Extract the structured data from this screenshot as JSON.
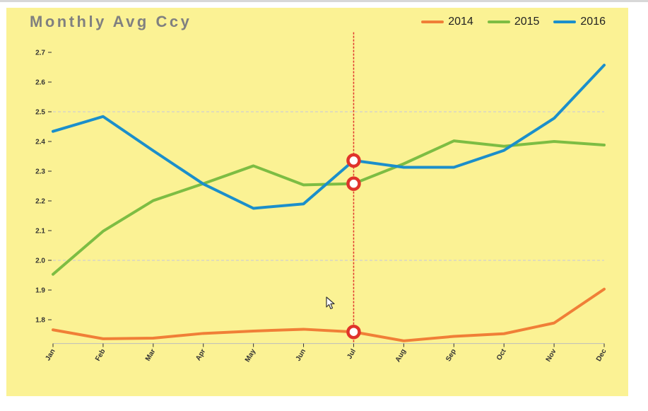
{
  "chart_data": {
    "type": "line",
    "title": "Monthly Avg Ccy",
    "xlabel": "",
    "ylabel": "",
    "categories": [
      "Jan",
      "Feb",
      "Mar",
      "Apr",
      "May",
      "Jun",
      "Jul",
      "Aug",
      "Sep",
      "Oct",
      "Nov",
      "Dec"
    ],
    "ylim": [
      1.72,
      2.72
    ],
    "yticks": [
      "1.8",
      "1.9",
      "2.0",
      "2.1",
      "2.2",
      "2.3",
      "2.4",
      "2.5",
      "2.6",
      "2.7"
    ],
    "dashed_gridlines": [
      2.0,
      2.5
    ],
    "legend_position": "top-right",
    "series": [
      {
        "name": "2014",
        "color": "#f07f37",
        "values": [
          1.766,
          1.736,
          1.738,
          1.754,
          1.762,
          1.768,
          1.759,
          1.729,
          1.744,
          1.753,
          1.789,
          1.903
        ]
      },
      {
        "name": "2015",
        "color": "#7dbd43",
        "values": [
          1.953,
          2.098,
          2.201,
          2.258,
          2.318,
          2.254,
          2.258,
          2.325,
          2.402,
          2.384,
          2.4,
          2.388
        ]
      },
      {
        "name": "2016",
        "color": "#1b8fcb",
        "values": [
          2.434,
          2.484,
          2.369,
          2.257,
          2.175,
          2.19,
          2.336,
          2.313,
          2.313,
          2.37,
          2.478,
          2.657
        ]
      }
    ],
    "hover": {
      "category": "Jul",
      "line_color": "#e0332b"
    }
  }
}
